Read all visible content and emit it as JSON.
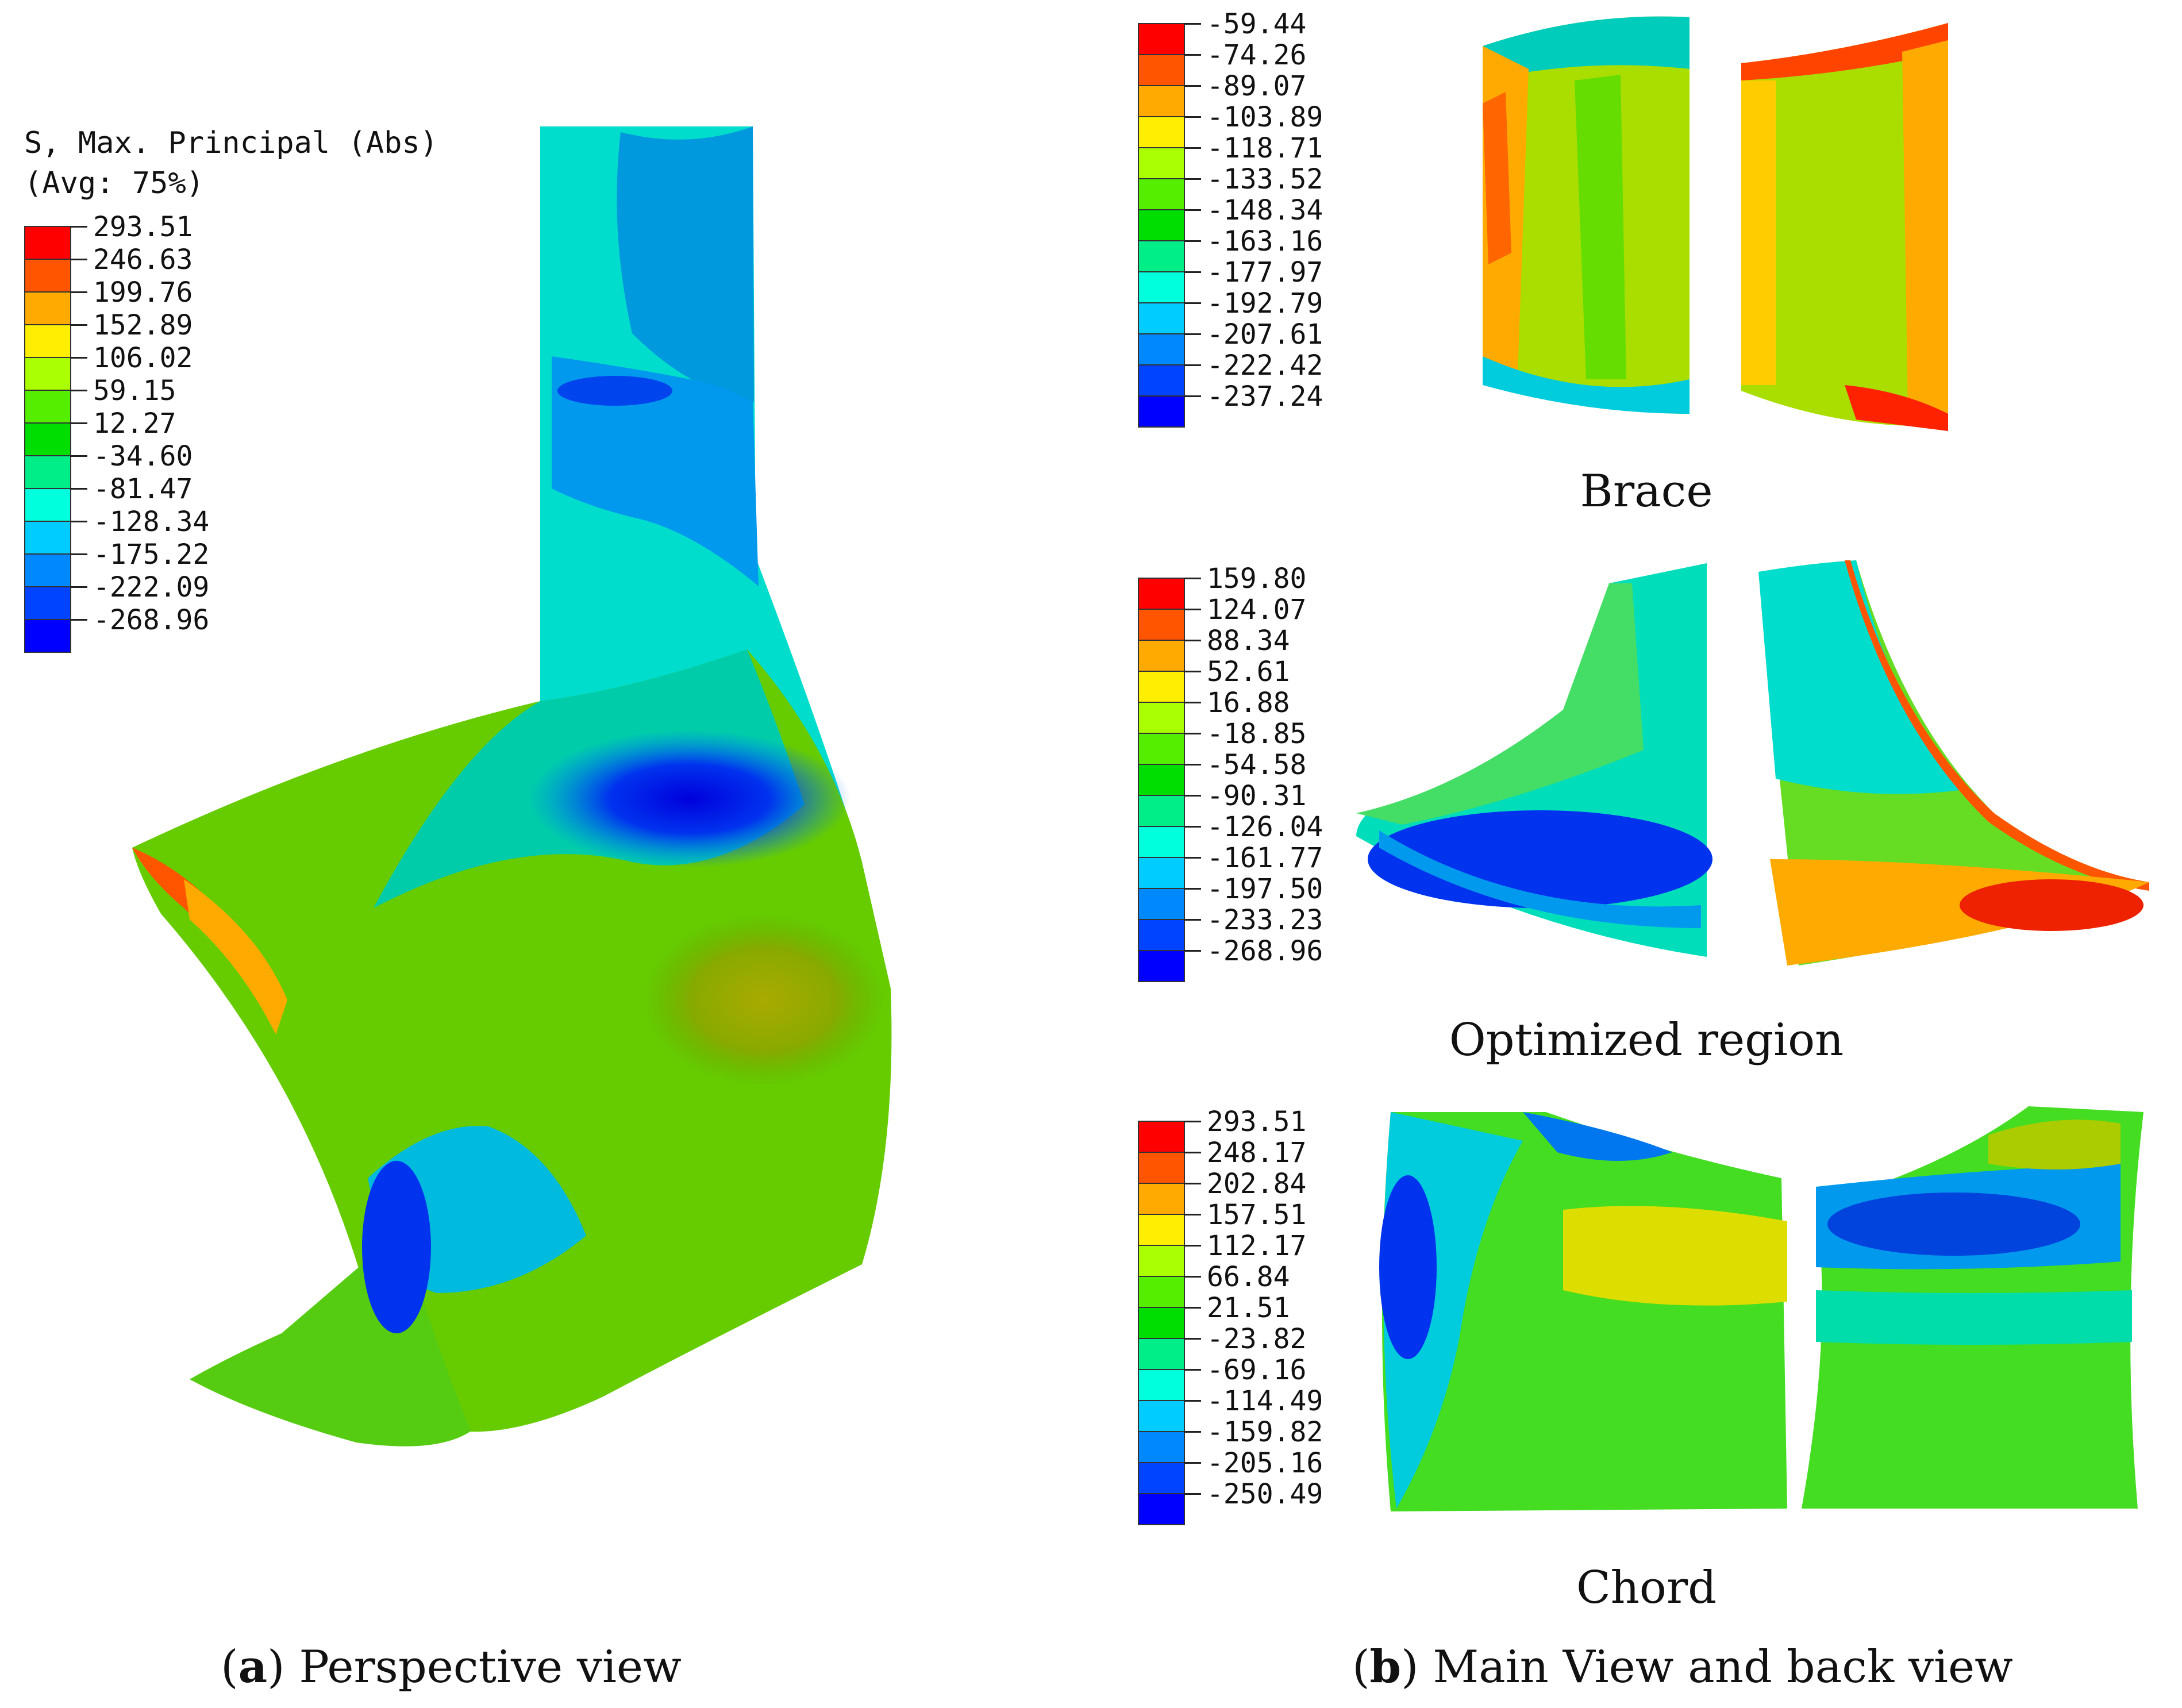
{
  "legend_a": {
    "title_line1": "S, Max. Principal (Abs)",
    "title_line2": "(Avg: 75%)",
    "values": [
      "293.51",
      "246.63",
      "199.76",
      "152.89",
      "106.02",
      "59.15",
      "12.27",
      "-34.60",
      "-81.47",
      "-128.34",
      "-175.22",
      "-222.09",
      "-268.96"
    ]
  },
  "legend_brace": {
    "values": [
      "-59.44",
      "-74.26",
      "-89.07",
      "-103.89",
      "-118.71",
      "-133.52",
      "-148.34",
      "-163.16",
      "-177.97",
      "-192.79",
      "-207.61",
      "-222.42",
      "-237.24"
    ]
  },
  "legend_optimized": {
    "values": [
      "159.80",
      "124.07",
      "88.34",
      "52.61",
      "16.88",
      "-18.85",
      "-54.58",
      "-90.31",
      "-126.04",
      "-161.77",
      "-197.50",
      "-233.23",
      "-268.96"
    ]
  },
  "legend_chord": {
    "values": [
      "293.51",
      "248.17",
      "202.84",
      "157.51",
      "112.17",
      "66.84",
      "21.51",
      "-23.82",
      "-69.16",
      "-114.49",
      "-159.82",
      "-205.16",
      "-250.49"
    ]
  },
  "contour_colors": [
    "#ff0000",
    "#ff5500",
    "#ffaa00",
    "#ffee00",
    "#aaff00",
    "#55ee00",
    "#00dd00",
    "#00ee88",
    "#00ffdd",
    "#00ccff",
    "#0088ff",
    "#0044ff",
    "#0000ff"
  ],
  "captions": {
    "brace": "Brace",
    "optimized": "Optimized region",
    "chord": "Chord",
    "panel_a_letter": "a",
    "panel_a_text": " Perspective view",
    "panel_b_letter": "b",
    "panel_b_text": " Main View and back view",
    "open_paren": "(",
    "close_paren": ")"
  }
}
